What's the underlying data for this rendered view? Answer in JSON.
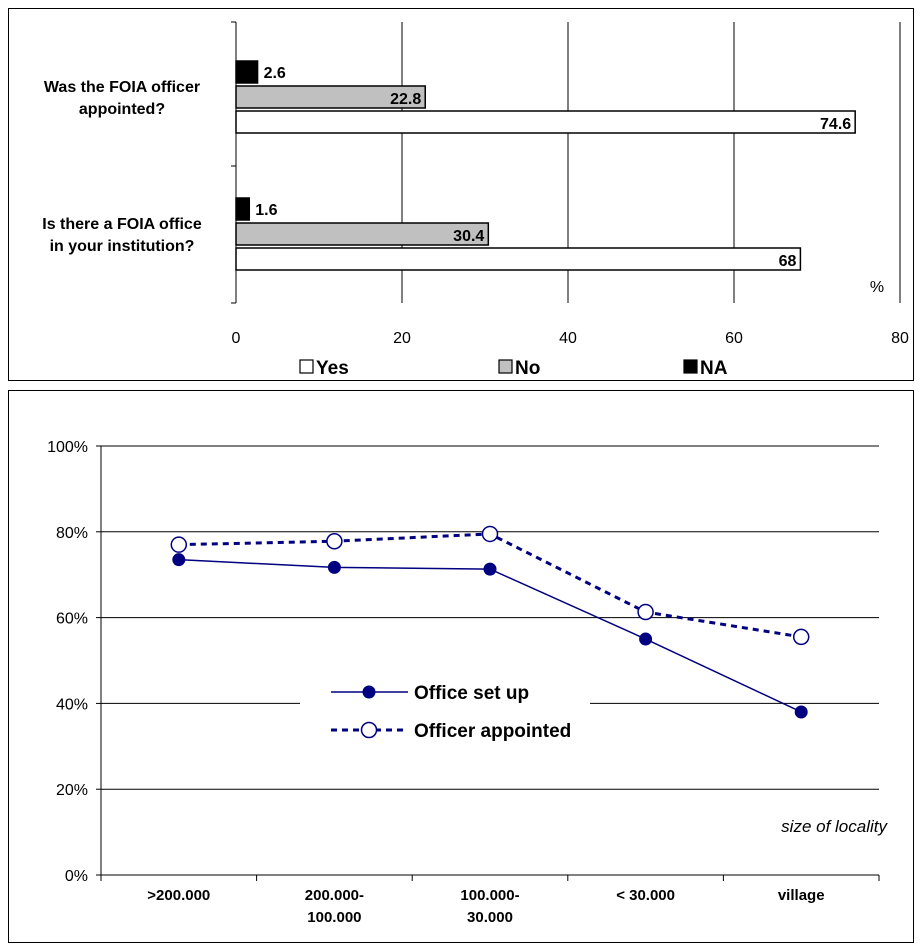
{
  "chart_data": [
    {
      "type": "bar",
      "orientation": "horizontal",
      "categories": [
        "Was the FOIA officer appointed?",
        "Is there a FOIA office in your institution?"
      ],
      "series": [
        {
          "name": "NA",
          "values": [
            2.6,
            1.6
          ],
          "color": "#000000",
          "labels": [
            "2.6",
            "1.6"
          ]
        },
        {
          "name": "No",
          "values": [
            22.8,
            30.4
          ],
          "color": "#c0c0c0",
          "labels": [
            "22.8",
            "30.4"
          ]
        },
        {
          "name": "Yes",
          "values": [
            74.6,
            68
          ],
          "color": "#ffffff",
          "labels": [
            "74.6",
            "68"
          ]
        }
      ],
      "xlim": [
        0,
        80
      ],
      "xticks": [
        "0",
        "20",
        "40",
        "60",
        "80"
      ],
      "unit_label": "%",
      "legend": {
        "position": "bottom",
        "order": [
          "Yes",
          "No",
          "NA"
        ]
      },
      "grid": true
    },
    {
      "type": "line",
      "categories": [
        ">200.000",
        "200.000-100.000",
        "100.000-30.000",
        "< 30.000",
        "village"
      ],
      "category_lines": [
        [
          ">200.000"
        ],
        [
          "200.000-",
          "100.000"
        ],
        [
          "100.000-",
          "30.000"
        ],
        [
          "< 30.000"
        ],
        [
          "village"
        ]
      ],
      "series": [
        {
          "name": "Office set up",
          "values": [
            73.5,
            71.7,
            71.3,
            55,
            38
          ],
          "color": "#000080",
          "style": "solid",
          "marker": "filled-circle"
        },
        {
          "name": "Officer appointed",
          "values": [
            77,
            77.8,
            79.5,
            61.3,
            55.5
          ],
          "color": "#000080",
          "style": "dashed",
          "marker": "open-circle"
        }
      ],
      "ylim": [
        0,
        100
      ],
      "yticks": [
        "0%",
        "20%",
        "40%",
        "60%",
        "80%",
        "100%"
      ],
      "xlabel": "size of locality",
      "legend": {
        "position": "center"
      },
      "grid": true
    }
  ]
}
